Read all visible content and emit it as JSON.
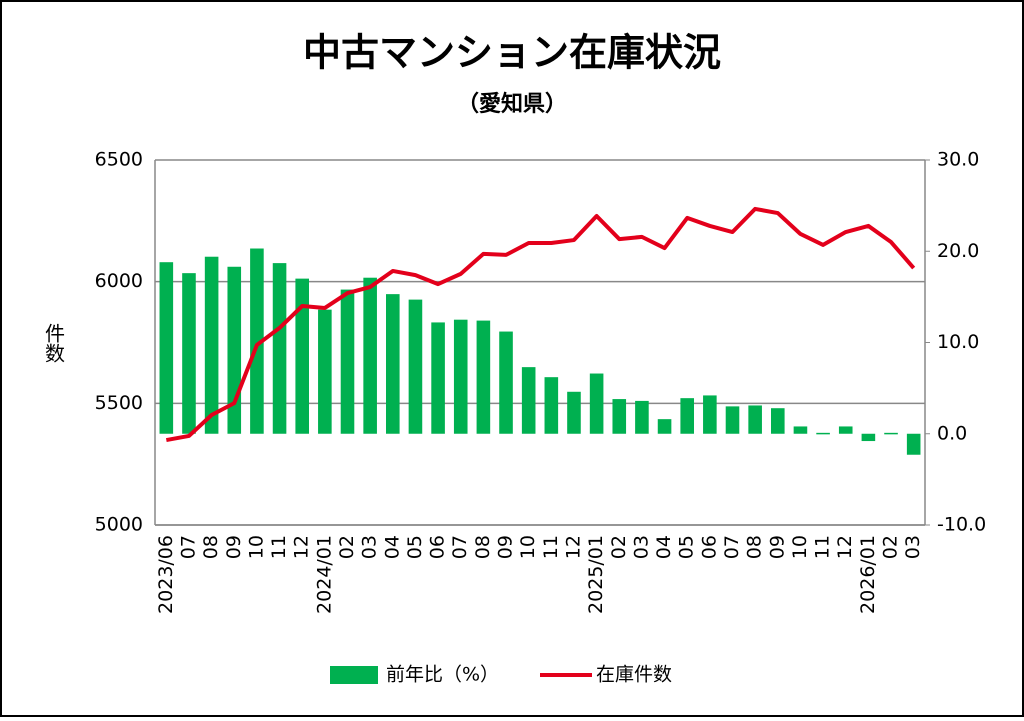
{
  "chart_data": {
    "type": "combo",
    "title": "中古マンション在庫状況",
    "subtitle": "（愛知県）",
    "y_label": "件数",
    "categories": [
      "2023/06",
      "07",
      "08",
      "09",
      "10",
      "11",
      "12",
      "2024/01",
      "02",
      "03",
      "04",
      "05",
      "06",
      "07",
      "08",
      "09",
      "10",
      "11",
      "12",
      "2025/01",
      "02",
      "03",
      "04",
      "05",
      "06",
      "07",
      "08",
      "09",
      "10",
      "11",
      "12",
      "2026/01",
      "02",
      "03"
    ],
    "series": [
      {
        "name": "前年比（%）",
        "type": "bar",
        "axis": "y2",
        "color": "#00b050",
        "values": [
          18.8,
          17.6,
          19.4,
          18.3,
          20.3,
          18.7,
          17.0,
          13.6,
          15.8,
          17.1,
          15.3,
          14.7,
          12.2,
          12.5,
          12.4,
          11.2,
          7.3,
          6.2,
          4.6,
          6.6,
          3.8,
          3.6,
          1.6,
          3.9,
          4.2,
          3.0,
          3.1,
          2.8,
          0.8,
          0.1,
          0.8,
          -0.8,
          0.1,
          -2.3
        ]
      },
      {
        "name": "在庫件数",
        "type": "line",
        "axis": "y",
        "color": "#e3001b",
        "values": [
          5349,
          5366,
          5452,
          5501,
          5740,
          5810,
          5900,
          5892,
          5953,
          5978,
          6044,
          6027,
          5990,
          6032,
          6114,
          6110,
          6159,
          6159,
          6171,
          6270,
          6175,
          6184,
          6138,
          6262,
          6229,
          6204,
          6299,
          6282,
          6196,
          6151,
          6204,
          6229,
          6163,
          6056
        ]
      }
    ],
    "ylim": [
      5000,
      6500
    ],
    "yticks": [
      5000,
      5500,
      6000,
      6500
    ],
    "y2lim": [
      -10,
      30
    ],
    "y2ticks": [
      {
        "value": -10,
        "label": "-10.0"
      },
      {
        "value": 0,
        "label": "0.0"
      },
      {
        "value": 10,
        "label": "10.0"
      },
      {
        "value": 20,
        "label": "20.0"
      },
      {
        "value": 30,
        "label": "30.0"
      }
    ],
    "y2_negative_tick_color": "#e3001b",
    "grid": true,
    "legend": "bottom"
  }
}
